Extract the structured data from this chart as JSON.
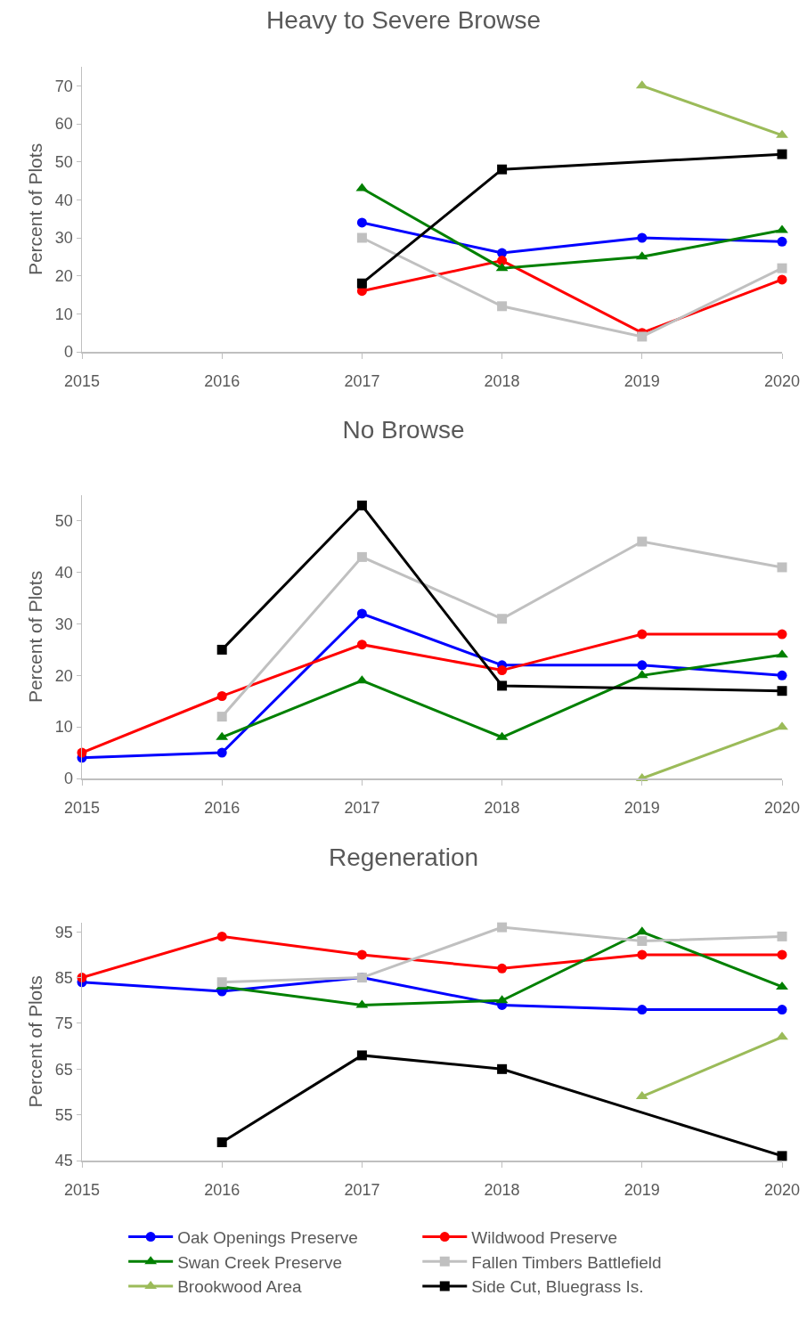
{
  "chart_data": [
    {
      "type": "line",
      "title": "Heavy to Severe Browse",
      "ylabel": "Percent of Plots",
      "x": [
        2017,
        2018,
        2019,
        2020
      ],
      "xlim": [
        2015,
        2020
      ],
      "xticks": [
        2015,
        2016,
        2017,
        2018,
        2019,
        2020
      ],
      "ylim": [
        0,
        75
      ],
      "yticks": [
        0,
        10,
        20,
        30,
        40,
        50,
        60,
        70
      ],
      "grid": false,
      "legend": false,
      "line_style": "solid",
      "series": [
        {
          "color": "#0000ff",
          "marker": "circle",
          "values": [
            34,
            26,
            30,
            29
          ]
        },
        {
          "color": "#ff0000",
          "marker": "circle",
          "values": [
            16,
            24,
            5,
            19
          ]
        },
        {
          "color": "#008000",
          "marker": "triangle",
          "values": [
            43,
            22,
            25,
            32
          ]
        },
        {
          "color": "#c0c0c0",
          "marker": "square",
          "values": [
            30,
            12,
            4,
            22
          ]
        },
        {
          "color": "#9bbb59",
          "marker": "triangle",
          "values": [
            null,
            null,
            70,
            57
          ]
        },
        {
          "color": "#000000",
          "marker": "square",
          "x": [
            2017,
            2018,
            2020
          ],
          "values": [
            18,
            48,
            52
          ]
        }
      ]
    },
    {
      "type": "line",
      "title": "No Browse",
      "ylabel": "Percent of Plots",
      "x": [
        2015,
        2016,
        2017,
        2018,
        2019,
        2020
      ],
      "xlim": [
        2015,
        2020
      ],
      "xticks": [
        2015,
        2016,
        2017,
        2018,
        2019,
        2020
      ],
      "ylim": [
        0,
        55
      ],
      "yticks": [
        0,
        10,
        20,
        30,
        40,
        50
      ],
      "grid": false,
      "legend": false,
      "line_style": "solid",
      "series": [
        {
          "color": "#0000ff",
          "marker": "circle",
          "values": [
            4,
            5,
            32,
            22,
            22,
            20
          ]
        },
        {
          "color": "#ff0000",
          "marker": "circle",
          "values": [
            5,
            16,
            26,
            21,
            28,
            28
          ]
        },
        {
          "color": "#008000",
          "marker": "triangle",
          "values": [
            null,
            8,
            19,
            8,
            20,
            24
          ]
        },
        {
          "color": "#c0c0c0",
          "marker": "square",
          "values": [
            null,
            12,
            43,
            31,
            46,
            41
          ]
        },
        {
          "color": "#9bbb59",
          "marker": "triangle",
          "values": [
            null,
            null,
            null,
            null,
            0,
            10
          ]
        },
        {
          "color": "#000000",
          "marker": "square",
          "x": [
            2016,
            2017,
            2018,
            2020
          ],
          "values": [
            25,
            53,
            18,
            17
          ]
        }
      ]
    },
    {
      "type": "line",
      "title": "Regeneration",
      "ylabel": "Percent of Plots",
      "x": [
        2015,
        2016,
        2017,
        2018,
        2019,
        2020
      ],
      "xlim": [
        2015,
        2020
      ],
      "xticks": [
        2015,
        2016,
        2017,
        2018,
        2019,
        2020
      ],
      "ylim": [
        45,
        97
      ],
      "yticks": [
        45,
        55,
        65,
        75,
        85,
        95
      ],
      "grid": false,
      "legend": "bottom",
      "line_style": "solid",
      "series": [
        {
          "name": "Oak Openings Preserve",
          "color": "#0000ff",
          "marker": "circle",
          "values": [
            84,
            82,
            85,
            79,
            78,
            78
          ]
        },
        {
          "name": "Wildwood Preserve",
          "color": "#ff0000",
          "marker": "circle",
          "values": [
            85,
            94,
            90,
            87,
            90,
            90
          ]
        },
        {
          "name": "Swan Creek Preserve",
          "color": "#008000",
          "marker": "triangle",
          "values": [
            null,
            83,
            79,
            80,
            95,
            83
          ]
        },
        {
          "name": "Fallen Timbers Battlefield",
          "color": "#c0c0c0",
          "marker": "square",
          "values": [
            null,
            84,
            85,
            96,
            93,
            94
          ]
        },
        {
          "name": "Brookwood Area",
          "color": "#9bbb59",
          "marker": "triangle",
          "values": [
            null,
            null,
            null,
            null,
            59,
            72
          ]
        },
        {
          "name": "Side Cut, Bluegrass Is.",
          "color": "#000000",
          "marker": "square",
          "x": [
            2016,
            2017,
            2018,
            2020
          ],
          "values": [
            49,
            68,
            65,
            46
          ]
        }
      ]
    }
  ]
}
